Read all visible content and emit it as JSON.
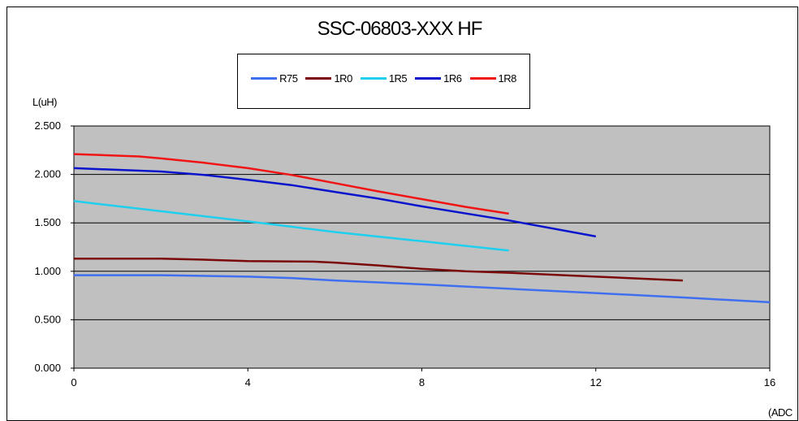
{
  "chart_data": {
    "type": "line",
    "title": "SSC-06803-XXX HF",
    "ylabel": "L(uH)",
    "xlabel": "(ADC",
    "xlim": [
      0,
      16
    ],
    "ylim": [
      0,
      2.5
    ],
    "x_ticks": [
      "0",
      "4",
      "8",
      "12",
      "16"
    ],
    "x_tick_values": [
      0,
      4,
      8,
      12,
      16
    ],
    "y_ticks": [
      "0.000",
      "0.500",
      "1.000",
      "1.500",
      "2.000",
      "2.500"
    ],
    "y_tick_values": [
      0,
      0.5,
      1.0,
      1.5,
      2.0,
      2.5
    ],
    "grid": "horizontal",
    "plot_background": "#c0c0c0",
    "legend_position": "top",
    "series": [
      {
        "name": "R75",
        "color": "#3f6ff0",
        "x": [
          0,
          2,
          4,
          5,
          6,
          8,
          10,
          12,
          14,
          16
        ],
        "y": [
          0.96,
          0.96,
          0.945,
          0.93,
          0.905,
          0.865,
          0.82,
          0.775,
          0.73,
          0.68
        ]
      },
      {
        "name": "1R0",
        "color": "#7a0a0a",
        "x": [
          0,
          2,
          3,
          4,
          5.5,
          6,
          7,
          8,
          9,
          10,
          12,
          14
        ],
        "y": [
          1.13,
          1.13,
          1.12,
          1.105,
          1.1,
          1.09,
          1.06,
          1.025,
          1.0,
          0.985,
          0.945,
          0.905
        ]
      },
      {
        "name": "1R5",
        "color": "#1ecfee",
        "x": [
          0,
          2,
          4,
          6,
          8,
          10
        ],
        "y": [
          1.725,
          1.62,
          1.515,
          1.405,
          1.31,
          1.215
        ]
      },
      {
        "name": "1R6",
        "color": "#0a14cc",
        "x": [
          0,
          2,
          3,
          4,
          5,
          6,
          7,
          8,
          10,
          12
        ],
        "y": [
          2.065,
          2.03,
          1.995,
          1.945,
          1.89,
          1.82,
          1.75,
          1.67,
          1.525,
          1.36
        ]
      },
      {
        "name": "1R8",
        "color": "#f01414",
        "x": [
          0,
          1.5,
          2,
          3,
          4,
          5,
          6,
          7,
          8,
          9,
          10
        ],
        "y": [
          2.21,
          2.185,
          2.165,
          2.12,
          2.065,
          1.995,
          1.91,
          1.825,
          1.745,
          1.665,
          1.595
        ]
      }
    ]
  }
}
